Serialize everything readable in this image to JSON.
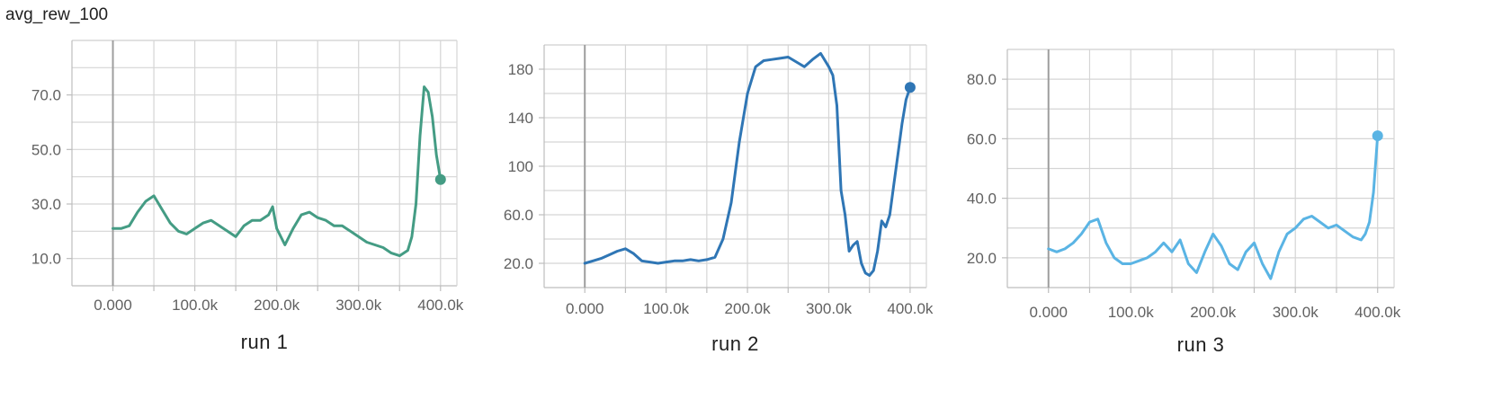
{
  "page_title": "avg_rew_100",
  "chart_data": [
    {
      "type": "line",
      "run_label": "run 1",
      "color": "#449c84",
      "xlim": [
        -50000,
        420000
      ],
      "ylim": [
        0,
        90
      ],
      "x_ticks": [
        0,
        100000,
        200000,
        300000,
        400000
      ],
      "x_tick_labels": [
        "0.000",
        "100.0k",
        "200.0k",
        "300.0k",
        "400.0k"
      ],
      "y_ticks": [
        10,
        30,
        50,
        70
      ],
      "y_tick_labels": [
        "10.0",
        "30.0",
        "50.0",
        "70.0"
      ],
      "series": [
        {
          "x": [
            0,
            10000,
            20000,
            30000,
            40000,
            50000,
            60000,
            70000,
            80000,
            90000,
            100000,
            110000,
            120000,
            130000,
            140000,
            150000,
            160000,
            170000,
            180000,
            190000,
            195000,
            200000,
            210000,
            220000,
            230000,
            240000,
            250000,
            260000,
            270000,
            280000,
            290000,
            300000,
            310000,
            320000,
            330000,
            340000,
            350000,
            360000,
            365000,
            370000,
            375000,
            380000,
            385000,
            390000,
            395000,
            400000
          ],
          "y": [
            21,
            21,
            22,
            27,
            31,
            33,
            28,
            23,
            20,
            19,
            21,
            23,
            24,
            22,
            20,
            18,
            22,
            24,
            24,
            26,
            29,
            21,
            15,
            21,
            26,
            27,
            25,
            24,
            22,
            22,
            20,
            18,
            16,
            15,
            14,
            12,
            11,
            13,
            18,
            30,
            55,
            73,
            71,
            62,
            48,
            39
          ]
        }
      ]
    },
    {
      "type": "line",
      "run_label": "run 2",
      "color": "#2f76b5",
      "xlim": [
        -50000,
        420000
      ],
      "ylim": [
        0,
        200
      ],
      "x_ticks": [
        0,
        100000,
        200000,
        300000,
        400000
      ],
      "x_tick_labels": [
        "0.000",
        "100.0k",
        "200.0k",
        "300.0k",
        "400.0k"
      ],
      "y_ticks": [
        20,
        60,
        100,
        140,
        180
      ],
      "y_tick_labels": [
        "20.0",
        "60.0",
        "100",
        "140",
        "180"
      ],
      "series": [
        {
          "x": [
            0,
            10000,
            20000,
            30000,
            40000,
            50000,
            60000,
            70000,
            80000,
            90000,
            100000,
            110000,
            120000,
            130000,
            140000,
            150000,
            160000,
            170000,
            180000,
            190000,
            200000,
            210000,
            220000,
            230000,
            240000,
            250000,
            260000,
            270000,
            280000,
            290000,
            300000,
            305000,
            310000,
            315000,
            320000,
            325000,
            330000,
            335000,
            340000,
            345000,
            350000,
            355000,
            360000,
            365000,
            370000,
            375000,
            380000,
            385000,
            390000,
            395000,
            400000
          ],
          "y": [
            20,
            22,
            24,
            27,
            30,
            32,
            28,
            22,
            21,
            20,
            21,
            22,
            22,
            23,
            22,
            23,
            25,
            40,
            70,
            120,
            160,
            182,
            187,
            188,
            189,
            190,
            186,
            182,
            188,
            193,
            182,
            175,
            150,
            80,
            60,
            30,
            35,
            38,
            20,
            12,
            10,
            14,
            30,
            55,
            50,
            60,
            85,
            110,
            135,
            155,
            165
          ]
        }
      ]
    },
    {
      "type": "line",
      "run_label": "run 3",
      "color": "#5ab4e4",
      "xlim": [
        -50000,
        420000
      ],
      "ylim": [
        10,
        90
      ],
      "x_ticks": [
        0,
        100000,
        200000,
        300000,
        400000
      ],
      "x_tick_labels": [
        "0.000",
        "100.0k",
        "200.0k",
        "300.0k",
        "400.0k"
      ],
      "y_ticks": [
        20,
        40,
        60,
        80
      ],
      "y_tick_labels": [
        "20.0",
        "40.0",
        "60.0",
        "80.0"
      ],
      "series": [
        {
          "x": [
            0,
            10000,
            20000,
            30000,
            40000,
            50000,
            60000,
            70000,
            80000,
            90000,
            100000,
            110000,
            120000,
            130000,
            140000,
            150000,
            160000,
            170000,
            180000,
            190000,
            200000,
            210000,
            220000,
            230000,
            240000,
            250000,
            260000,
            270000,
            280000,
            290000,
            300000,
            310000,
            320000,
            330000,
            340000,
            350000,
            360000,
            370000,
            380000,
            385000,
            390000,
            395000,
            400000
          ],
          "y": [
            23,
            22,
            23,
            25,
            28,
            32,
            33,
            25,
            20,
            18,
            18,
            19,
            20,
            22,
            25,
            22,
            26,
            18,
            15,
            22,
            28,
            24,
            18,
            16,
            22,
            25,
            18,
            13,
            22,
            28,
            30,
            33,
            34,
            32,
            30,
            31,
            29,
            27,
            26,
            28,
            32,
            42,
            61
          ]
        }
      ]
    }
  ]
}
